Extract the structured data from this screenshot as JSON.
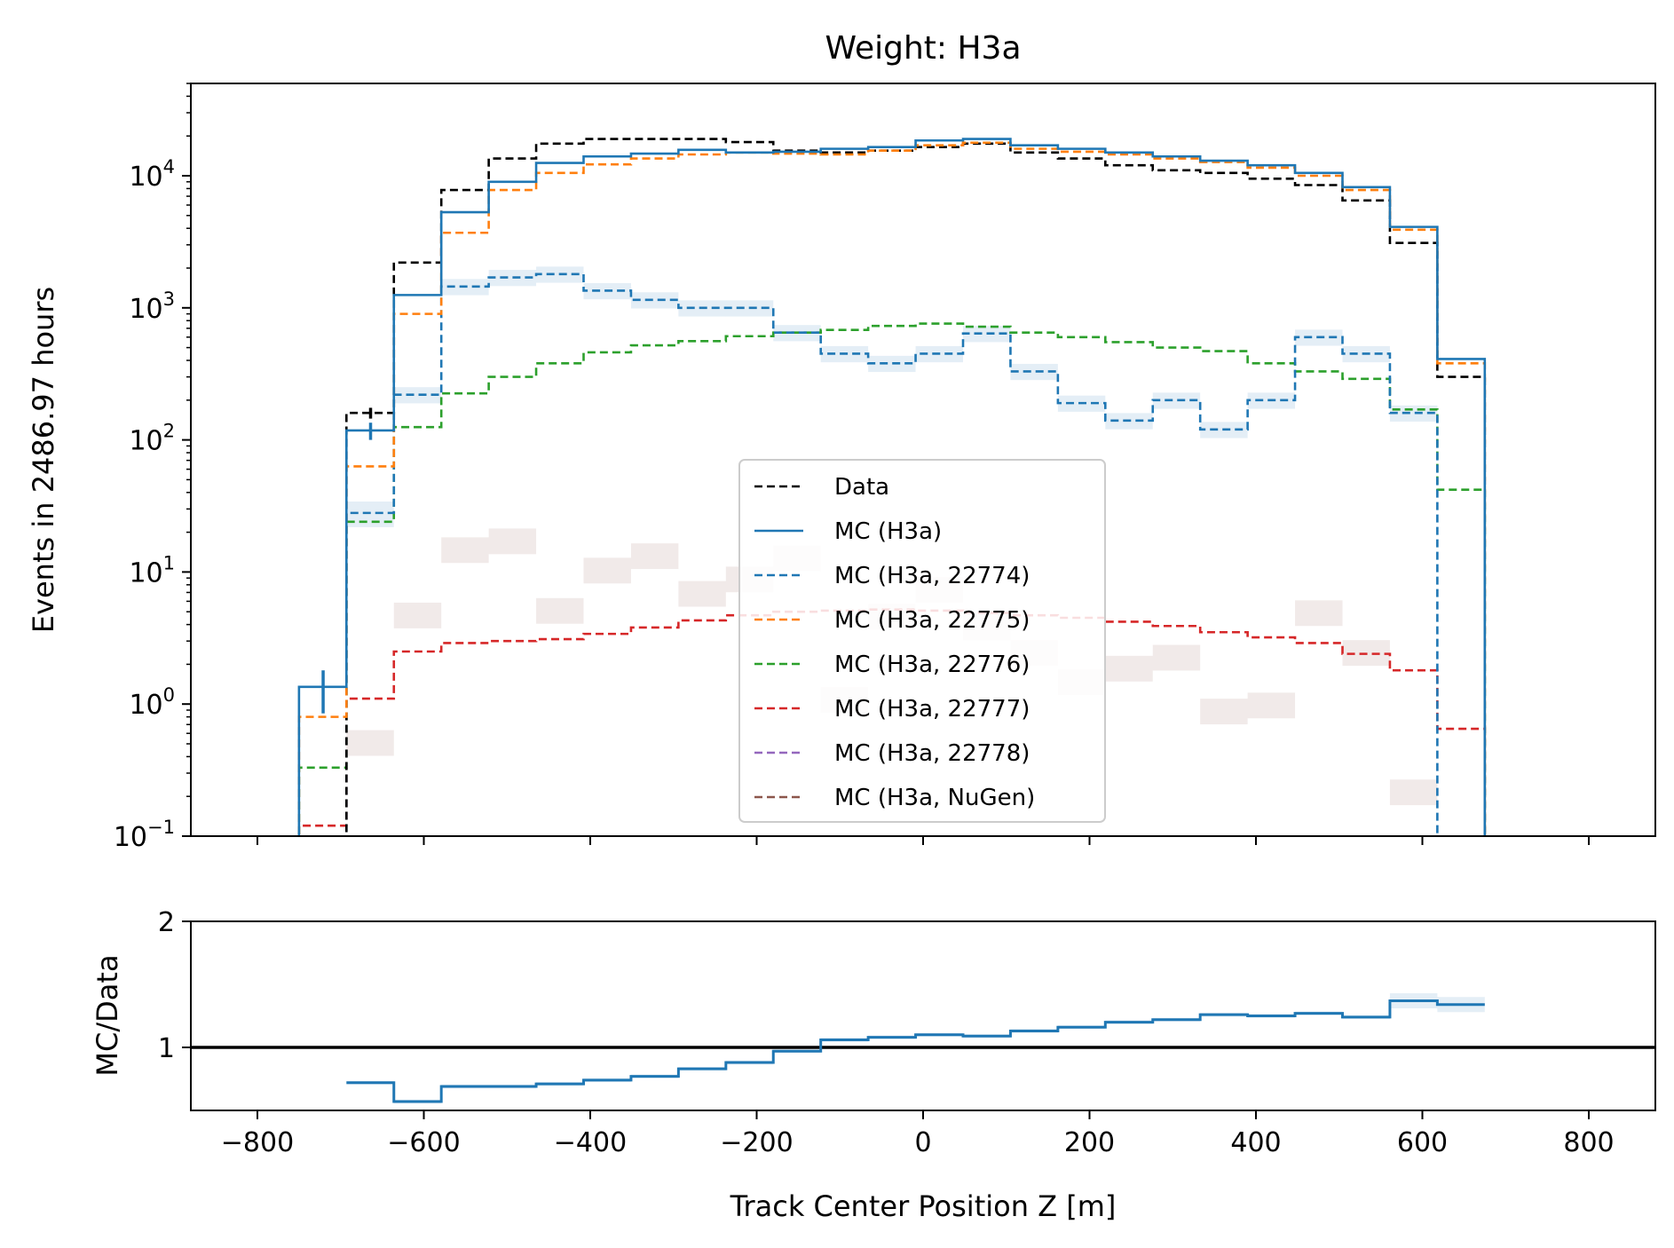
{
  "chart_data": {
    "type": "histogram-step",
    "title": "Weight: H3a",
    "xlabel": "Track Center Position Z [m]",
    "ylabel": "Events in 2486.97 hours",
    "ratio_ylabel": "MC/Data",
    "xlim": [
      -880,
      880
    ],
    "ylim": [
      0.1,
      50000
    ],
    "yscale": "log",
    "ratio_ylim": [
      0.5,
      2
    ],
    "x_ticks": [
      "−800",
      "−600",
      "−400",
      "−200",
      "0",
      "200",
      "400",
      "600",
      "800"
    ],
    "y_ticks": [
      {
        "base": "10",
        "exp": "4"
      },
      {
        "base": "10",
        "exp": "3"
      },
      {
        "base": "10",
        "exp": "2"
      },
      {
        "base": "10",
        "exp": "1"
      },
      {
        "base": "10",
        "exp": "0"
      },
      {
        "base": "10",
        "exp": "−1"
      }
    ],
    "ratio_y_ticks": [
      "2",
      "1"
    ],
    "legend_position": "center",
    "bin_edges": [
      -750,
      -693,
      -636,
      -579,
      -522,
      -465,
      -408,
      -351,
      -294,
      -237,
      -180,
      -123,
      -66,
      -9,
      48,
      105,
      162,
      219,
      276,
      333,
      390,
      447,
      504,
      561,
      618,
      675
    ],
    "series": [
      {
        "name": "Data",
        "color": "#000000",
        "style": "dashed",
        "values": [
          0,
          160,
          2200,
          7800,
          13500,
          17500,
          19000,
          19000,
          19000,
          18000,
          15500,
          15000,
          15500,
          16500,
          17500,
          15000,
          13500,
          12000,
          11000,
          10500,
          9500,
          8500,
          6500,
          3100,
          300
        ]
      },
      {
        "name": "MC (H3a)",
        "color": "#1f77b4",
        "style": "solid",
        "values": [
          1.35,
          118,
          1250,
          5300,
          9000,
          12500,
          14000,
          14700,
          15700,
          15000,
          15200,
          16000,
          16500,
          18500,
          19000,
          17000,
          16000,
          15000,
          14000,
          13000,
          12000,
          10500,
          8200,
          4100,
          410
        ]
      },
      {
        "name": "MC (H3a, 22774)",
        "color": "#1f77b4",
        "style": "dashed",
        "values": [
          0,
          28,
          220,
          1450,
          1700,
          1800,
          1350,
          1150,
          1000,
          1000,
          650,
          450,
          380,
          450,
          640,
          330,
          190,
          140,
          200,
          120,
          200,
          600,
          450,
          160,
          0
        ],
        "band": true
      },
      {
        "name": "MC (H3a, 22775)",
        "color": "#ff7f0e",
        "style": "dashed",
        "values": [
          0.8,
          63,
          900,
          3700,
          7800,
          10500,
          12200,
          13500,
          14500,
          15000,
          14700,
          14500,
          15500,
          17000,
          17800,
          16000,
          15200,
          14500,
          13500,
          12700,
          11500,
          10000,
          7800,
          3900,
          380
        ]
      },
      {
        "name": "MC (H3a, 22776)",
        "color": "#2ca02c",
        "style": "dashed",
        "values": [
          0.33,
          24,
          125,
          225,
          300,
          380,
          460,
          520,
          560,
          610,
          650,
          680,
          730,
          760,
          720,
          650,
          600,
          550,
          500,
          470,
          380,
          330,
          290,
          170,
          42
        ]
      },
      {
        "name": "MC (H3a, 22777)",
        "color": "#d62728",
        "style": "dashed",
        "values": [
          0.12,
          1.1,
          2.5,
          2.9,
          3.0,
          3.1,
          3.4,
          3.8,
          4.3,
          4.7,
          5.0,
          5.1,
          5.2,
          5.1,
          4.9,
          4.7,
          4.5,
          4.2,
          3.9,
          3.5,
          3.2,
          2.9,
          2.4,
          1.8,
          0.65
        ]
      },
      {
        "name": "MC (H3a, 22778)",
        "color": "#9467bd",
        "style": "dashed",
        "values": []
      },
      {
        "name": "MC (H3a, NuGen)",
        "color": "#8c564b",
        "style": "dashed",
        "values": [
          0,
          0.52,
          4.8,
          15,
          17.5,
          5.2,
          10.5,
          13.5,
          7,
          9,
          13,
          1.1,
          4.7,
          7.5,
          3.9,
          2.5,
          1.5,
          1.9,
          2.3,
          0.9,
          1.0,
          5.0,
          2.5,
          0.22,
          0
        ],
        "band": true
      }
    ],
    "ratio": {
      "name": "MC/Data",
      "color": "#1f77b4",
      "values": [
        0,
        0.72,
        0.57,
        0.69,
        0.69,
        0.71,
        0.74,
        0.77,
        0.83,
        0.88,
        0.97,
        1.06,
        1.08,
        1.1,
        1.09,
        1.13,
        1.16,
        1.2,
        1.22,
        1.26,
        1.25,
        1.27,
        1.24,
        1.37,
        1.34
      ]
    }
  }
}
